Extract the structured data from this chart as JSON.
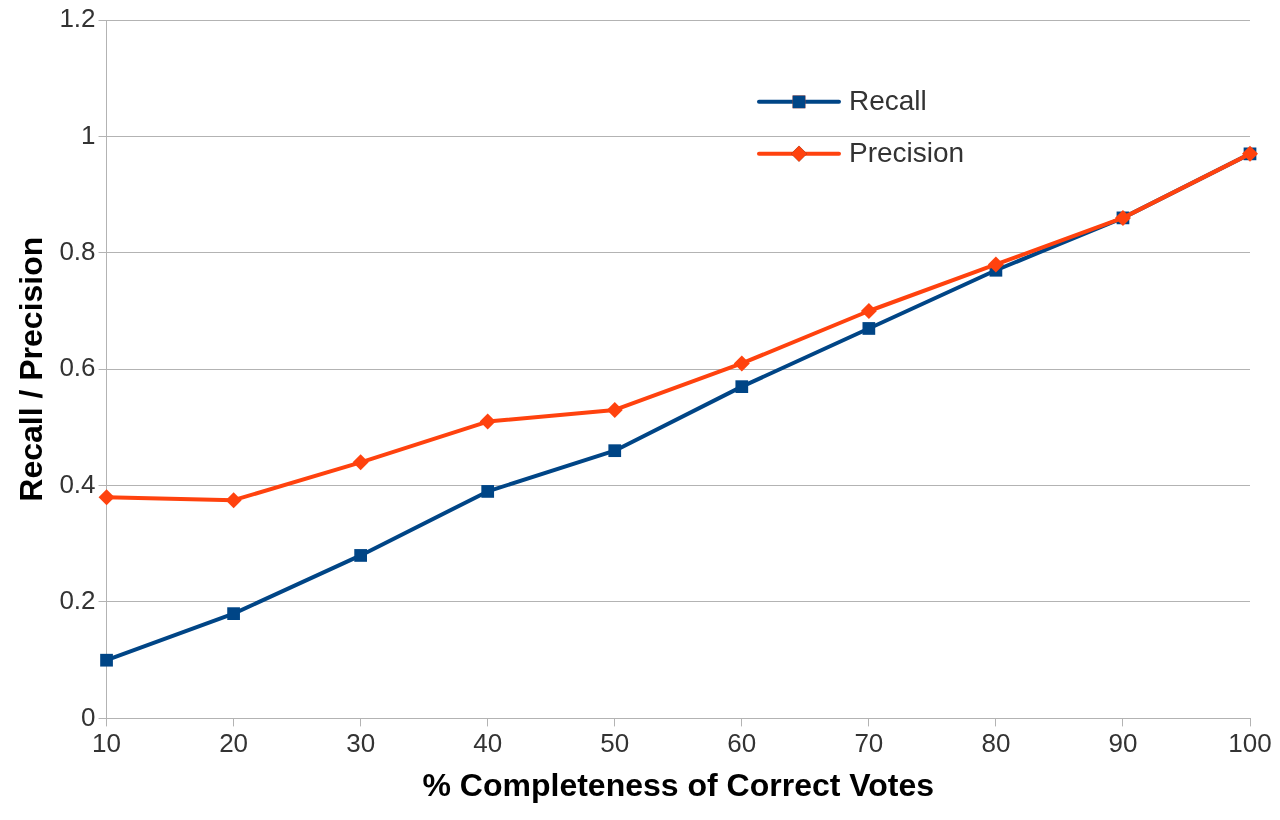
{
  "chart_data": {
    "type": "line",
    "xlabel": "% Completeness of Correct Votes",
    "ylabel": "Recall / Precision",
    "x": [
      10,
      20,
      30,
      40,
      50,
      60,
      70,
      80,
      90,
      100
    ],
    "series": [
      {
        "name": "Recall",
        "color": "#004586",
        "marker": "square",
        "values": [
          0.1,
          0.18,
          0.28,
          0.39,
          0.46,
          0.57,
          0.67,
          0.77,
          0.86,
          0.97
        ]
      },
      {
        "name": "Precision",
        "color": "#ff420e",
        "marker": "diamond",
        "values": [
          0.38,
          0.375,
          0.44,
          0.51,
          0.53,
          0.61,
          0.7,
          0.78,
          0.86,
          0.97
        ]
      }
    ],
    "xlim": [
      10,
      100
    ],
    "xticks": [
      10,
      20,
      30,
      40,
      50,
      60,
      70,
      80,
      90,
      100
    ],
    "ylim": [
      0,
      1.2
    ],
    "yticks": [
      0,
      0.2,
      0.4,
      0.6,
      0.8,
      1,
      1.2
    ],
    "grid": "y",
    "legend": "top right",
    "line_style": "solid"
  }
}
